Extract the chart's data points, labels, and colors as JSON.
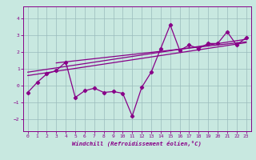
{
  "xlabel": "Windchill (Refroidissement éolien,°C)",
  "xlim": [
    -0.5,
    23.5
  ],
  "ylim": [
    -2.7,
    4.7
  ],
  "yticks": [
    -2,
    -1,
    0,
    1,
    2,
    3,
    4
  ],
  "xticks": [
    0,
    1,
    2,
    3,
    4,
    5,
    6,
    7,
    8,
    9,
    10,
    11,
    12,
    13,
    14,
    15,
    16,
    17,
    18,
    19,
    20,
    21,
    22,
    23
  ],
  "bg_color": "#c8e8e0",
  "line_color": "#880088",
  "data_x": [
    0,
    1,
    2,
    3,
    4,
    5,
    6,
    7,
    8,
    9,
    10,
    11,
    12,
    13,
    14,
    15,
    16,
    17,
    18,
    19,
    20,
    21,
    22,
    23
  ],
  "data_y": [
    -0.4,
    0.2,
    0.7,
    0.9,
    1.4,
    -0.7,
    -0.3,
    -0.15,
    -0.4,
    -0.35,
    -0.45,
    -1.8,
    -0.1,
    0.8,
    2.2,
    3.6,
    2.1,
    2.4,
    2.2,
    2.5,
    2.5,
    3.2,
    2.4,
    2.85
  ],
  "trend1_x": [
    0,
    23
  ],
  "trend1_y": [
    0.6,
    2.55
  ],
  "trend2_x": [
    0,
    23
  ],
  "trend2_y": [
    0.8,
    2.75
  ],
  "trend3_x": [
    3,
    23
  ],
  "trend3_y": [
    1.35,
    2.6
  ]
}
